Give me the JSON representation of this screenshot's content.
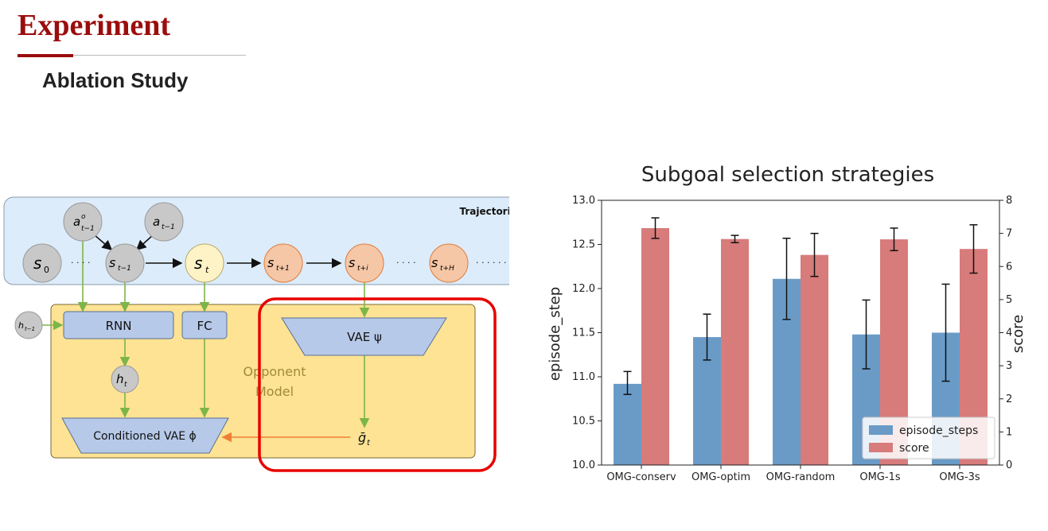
{
  "slide": {
    "title": "Experiment",
    "subtitle": "Ablation Study"
  },
  "colors": {
    "title": "#9b0d0d",
    "trajectory_box": "#dcecfa",
    "model_box": "#fde393",
    "node_gray": "#c8c8c8",
    "node_cream": "#fdf3c6",
    "node_orange": "#f6c7a6",
    "block_blue": "#b7c9e8",
    "arrow_green": "#7db548",
    "arrow_orange": "#ee7f35",
    "highlight": "#e80000",
    "bar_steps": "#6a9bc7",
    "bar_score": "#d77b7b"
  },
  "diagram": {
    "trajectories_label": "Trajectories",
    "model_label_line1": "Opponent",
    "model_label_line2": "Model",
    "nodes": {
      "a_o_prev": "a",
      "a_o_prev_sup": "o",
      "a_o_prev_sub": "t−1",
      "a_prev": "a",
      "a_prev_sub": "t−1",
      "s0": "s",
      "s0_sub": "0",
      "s_prev": "s",
      "s_prev_sub": "t−1",
      "s_t": "s",
      "s_t_sub": "t",
      "s_next": "s",
      "s_next_sub": "t+1",
      "s_i": "s",
      "s_i_sub": "t+i",
      "s_H": "s",
      "s_H_sub": "t+H",
      "h_prev": "h",
      "h_prev_sub": "t−1",
      "h_t": "h",
      "h_t_sub": "t",
      "g_t": "ḡ",
      "g_t_sub": "t"
    },
    "ellipsis_1": "· · · ·",
    "ellipsis_2": "· · · ·",
    "ellipsis_3": "· · · · · ·",
    "blocks": {
      "rnn": "RNN",
      "fc": "FC",
      "vae_psi": "VAE  ψ",
      "cond_vae": "Conditioned VAE ϕ"
    }
  },
  "chart_data": {
    "type": "bar",
    "title": "Subgoal selection strategies",
    "categories": [
      "OMG-conserv",
      "OMG-optim",
      "OMG-random",
      "OMG-1s",
      "OMG-3s"
    ],
    "xlabel": "",
    "ylabel": "episode_step",
    "ylabel_right": "score",
    "ylim": [
      10.0,
      13.0
    ],
    "ylim_right": [
      0,
      8
    ],
    "yticks": [
      "10.0",
      "10.5",
      "11.0",
      "11.5",
      "12.0",
      "12.5",
      "13.0"
    ],
    "yticks_right": [
      "0",
      "1",
      "2",
      "3",
      "4",
      "5",
      "6",
      "7",
      "8"
    ],
    "legend_position": "bottom-right",
    "series": [
      {
        "name": "episode_steps",
        "axis": "left",
        "values": [
          10.92,
          11.45,
          12.11,
          11.48,
          11.5
        ],
        "err_low": [
          10.8,
          11.19,
          11.65,
          11.09,
          10.95
        ],
        "err_high": [
          11.06,
          11.71,
          12.57,
          11.87,
          12.05
        ]
      },
      {
        "name": "score",
        "axis": "right",
        "values": [
          7.16,
          6.83,
          6.35,
          6.82,
          6.53
        ],
        "err_low": [
          6.85,
          6.72,
          5.7,
          6.48,
          5.8
        ],
        "err_high": [
          7.47,
          6.94,
          7.0,
          7.16,
          7.26
        ]
      }
    ]
  }
}
